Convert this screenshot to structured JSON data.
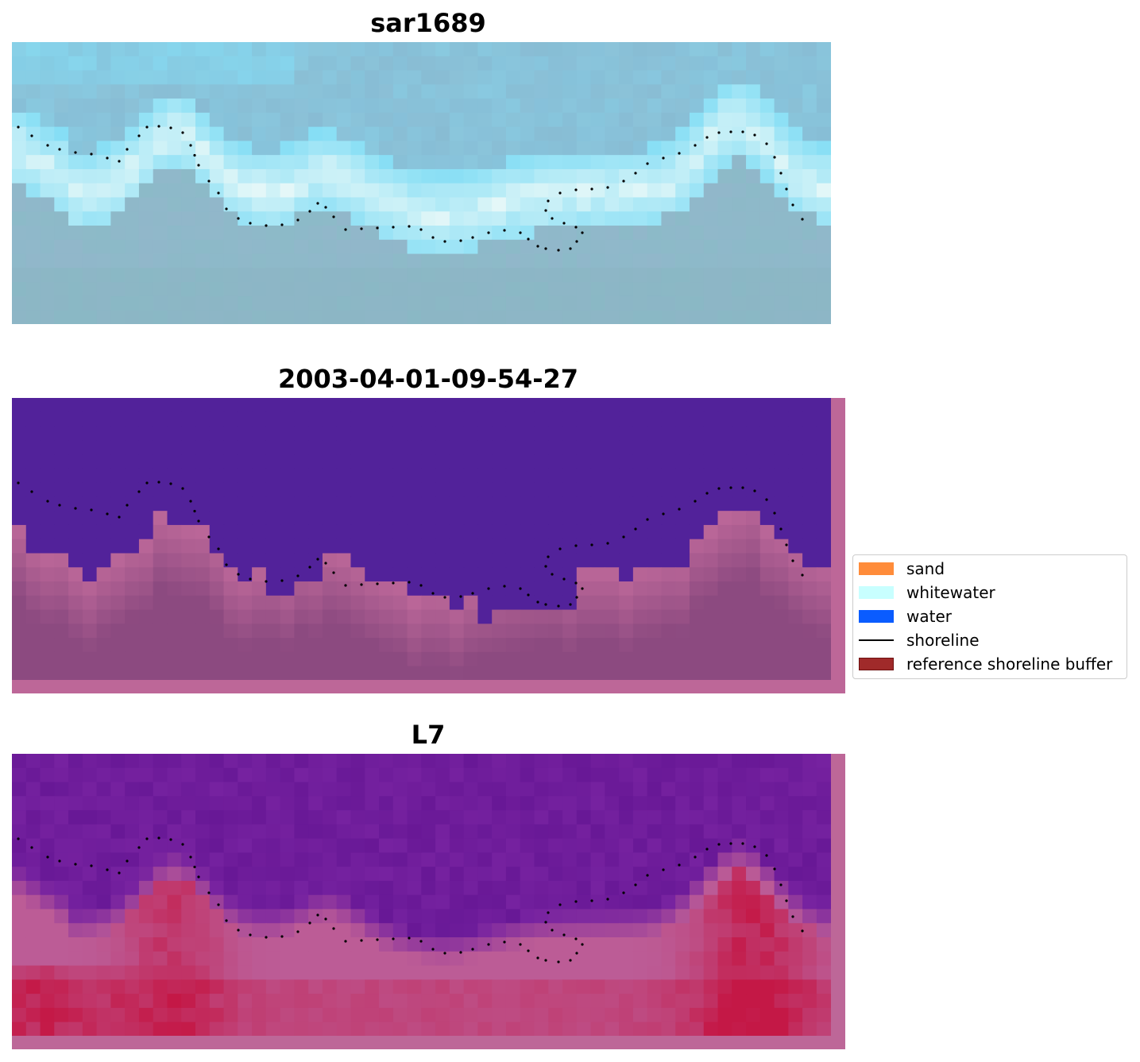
{
  "panels": [
    {
      "title": "sar1689",
      "kind": "rgb"
    },
    {
      "title": "2003-04-01-09-54-27",
      "kind": "classified"
    },
    {
      "title": "L7",
      "kind": "mndwi"
    }
  ],
  "legend": {
    "items": [
      {
        "label": "sand",
        "type": "patch",
        "color": "#ff8c3a"
      },
      {
        "label": "whitewater",
        "type": "patch",
        "color": "#c8ffff"
      },
      {
        "label": "water",
        "type": "patch",
        "color": "#0a5cff"
      },
      {
        "label": "shoreline",
        "type": "line",
        "color": "#000000"
      },
      {
        "label": "reference shoreline buffer",
        "type": "patch",
        "color": "#a02a2a",
        "edge": "#6e1010"
      }
    ]
  },
  "colors": {
    "water_class": "#52229a",
    "buffer_overlay": "#bd6798",
    "land_overlay": "#8c4a80",
    "shoreline_points": "#000000"
  }
}
